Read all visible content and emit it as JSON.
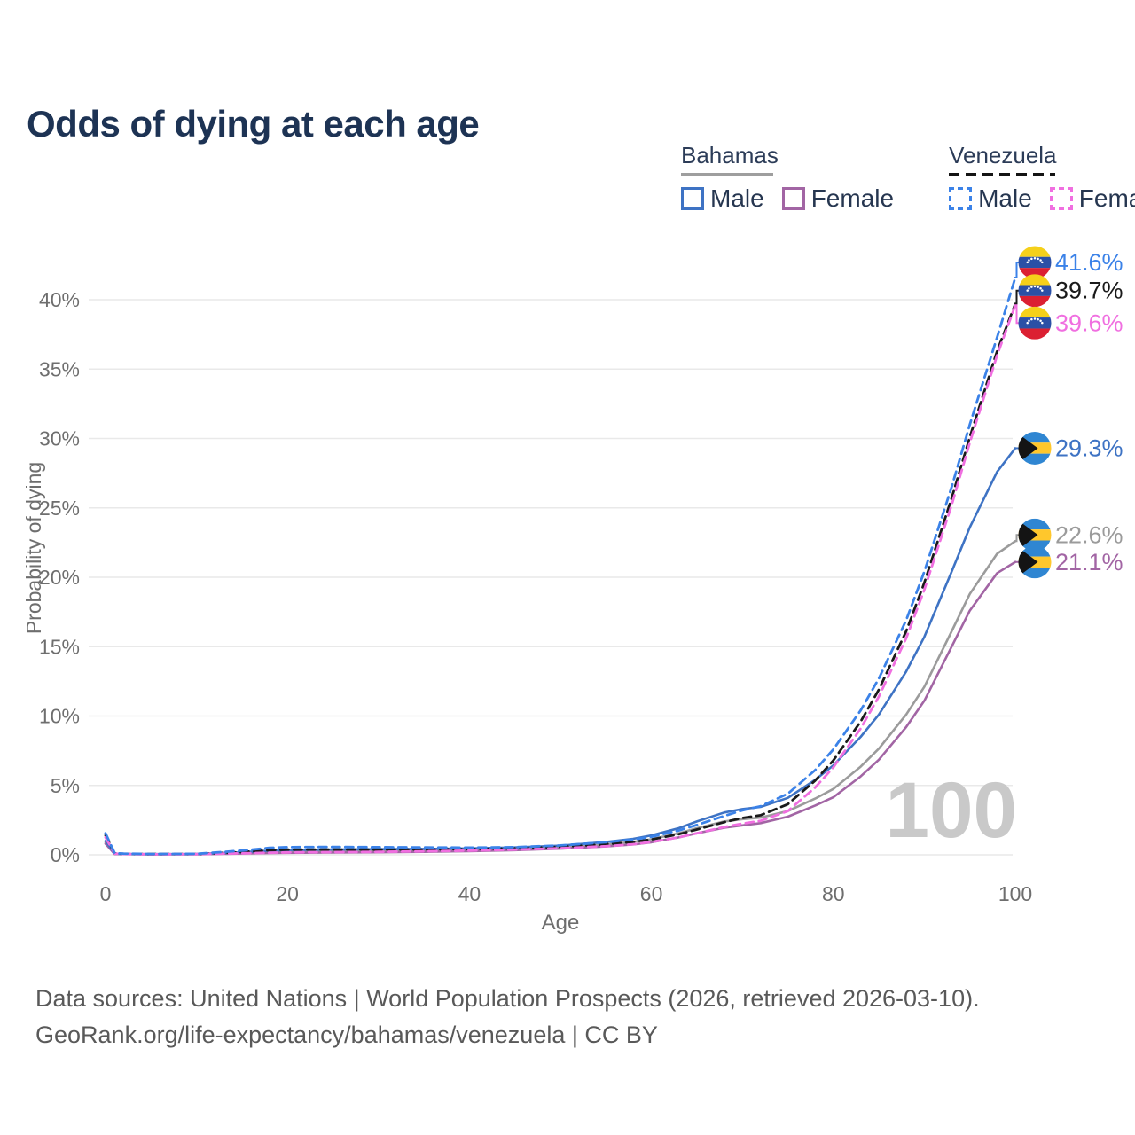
{
  "title": "Odds of dying at each age",
  "legend": {
    "groups": [
      {
        "name": "Bahamas",
        "line_style": "solid",
        "underline_color": "#9e9e9e",
        "items": [
          {
            "label": "Male",
            "color": "#3e73c4"
          },
          {
            "label": "Female",
            "color": "#a265a4"
          }
        ]
      },
      {
        "name": "Venezuela",
        "line_style": "dashed",
        "underline_color": "#141414",
        "items": [
          {
            "label": "Male",
            "color": "#3b82e8"
          },
          {
            "label": "Female",
            "color": "#f06fe0"
          }
        ]
      }
    ]
  },
  "chart_data": {
    "type": "line",
    "title": "Odds of dying at each age",
    "xlabel": "Age",
    "ylabel": "Probability of dying",
    "xlim": [
      0,
      100
    ],
    "ylim": [
      0,
      43
    ],
    "x_ticks": [
      0,
      20,
      40,
      60,
      80,
      100
    ],
    "y_ticks": [
      "0%",
      "5%",
      "10%",
      "15%",
      "20%",
      "25%",
      "30%",
      "35%",
      "40%"
    ],
    "grid": true,
    "legend_position": "top-right",
    "watermark": "100",
    "x": [
      0,
      1,
      2,
      5,
      10,
      15,
      18,
      20,
      25,
      30,
      35,
      40,
      45,
      50,
      55,
      58,
      60,
      63,
      65,
      68,
      70,
      72,
      75,
      78,
      80,
      83,
      85,
      88,
      90,
      93,
      95,
      98,
      100
    ],
    "series": [
      {
        "name": "Venezuela Male",
        "country": "Venezuela",
        "sex": "Male",
        "dash": true,
        "color": "#3b82e8",
        "end_label": "41.6%",
        "values": [
          1.55,
          0.12,
          0.08,
          0.06,
          0.07,
          0.3,
          0.5,
          0.55,
          0.57,
          0.55,
          0.53,
          0.52,
          0.55,
          0.68,
          0.9,
          1.1,
          1.3,
          1.75,
          2.15,
          2.8,
          3.2,
          3.5,
          4.4,
          6.1,
          7.6,
          10.4,
          12.7,
          16.9,
          20.4,
          26.5,
          31.0,
          37.3,
          41.6
        ]
      },
      {
        "name": "Venezuela Both sexes",
        "country": "Venezuela",
        "sex": "Both",
        "dash": true,
        "color": "#1a1a1a",
        "end_label": "39.7%",
        "values": [
          1.4,
          0.1,
          0.07,
          0.05,
          0.06,
          0.2,
          0.33,
          0.37,
          0.38,
          0.37,
          0.38,
          0.41,
          0.46,
          0.57,
          0.76,
          0.93,
          1.1,
          1.48,
          1.82,
          2.35,
          2.65,
          2.85,
          3.65,
          5.35,
          6.8,
          9.6,
          11.9,
          16.1,
          19.6,
          25.7,
          30.1,
          36.3,
          39.7
        ]
      },
      {
        "name": "Venezuela Female",
        "country": "Venezuela",
        "sex": "Female",
        "dash": true,
        "color": "#f06fe0",
        "end_label": "39.6%",
        "values": [
          1.25,
          0.09,
          0.06,
          0.04,
          0.05,
          0.11,
          0.15,
          0.17,
          0.19,
          0.21,
          0.25,
          0.3,
          0.37,
          0.47,
          0.62,
          0.76,
          0.92,
          1.25,
          1.55,
          2.0,
          2.25,
          2.45,
          3.15,
          4.85,
          6.3,
          9.1,
          11.4,
          15.6,
          19.1,
          25.2,
          29.7,
          36.0,
          39.6
        ]
      },
      {
        "name": "Bahamas Male",
        "country": "Bahamas",
        "sex": "Male",
        "dash": false,
        "color": "#3e73c4",
        "end_label": "29.3%",
        "values": [
          1.0,
          0.08,
          0.06,
          0.05,
          0.06,
          0.18,
          0.3,
          0.34,
          0.38,
          0.4,
          0.42,
          0.46,
          0.53,
          0.66,
          0.92,
          1.15,
          1.4,
          1.92,
          2.4,
          3.05,
          3.3,
          3.45,
          4.1,
          5.4,
          6.45,
          8.5,
          10.1,
          13.2,
          15.7,
          20.4,
          23.6,
          27.6,
          29.3
        ]
      },
      {
        "name": "Bahamas Both sexes",
        "country": "Bahamas",
        "sex": "Both",
        "dash": false,
        "color": "#9b9b9b",
        "end_label": "22.6%",
        "values": [
          0.9,
          0.07,
          0.05,
          0.04,
          0.05,
          0.13,
          0.2,
          0.24,
          0.27,
          0.29,
          0.31,
          0.36,
          0.43,
          0.54,
          0.74,
          0.93,
          1.12,
          1.55,
          1.92,
          2.4,
          2.57,
          2.68,
          3.15,
          4.05,
          4.75,
          6.35,
          7.65,
          10.1,
          12.1,
          16.1,
          18.8,
          21.7,
          22.6
        ]
      },
      {
        "name": "Bahamas Female",
        "country": "Bahamas",
        "sex": "Female",
        "dash": false,
        "color": "#a265a4",
        "end_label": "21.1%",
        "values": [
          0.8,
          0.06,
          0.05,
          0.04,
          0.04,
          0.09,
          0.12,
          0.14,
          0.16,
          0.18,
          0.21,
          0.26,
          0.33,
          0.44,
          0.6,
          0.75,
          0.9,
          1.25,
          1.55,
          1.95,
          2.12,
          2.28,
          2.75,
          3.55,
          4.15,
          5.65,
          6.85,
          9.2,
          11.1,
          15.0,
          17.6,
          20.3,
          21.1
        ]
      }
    ],
    "flag_colors": {
      "venezuela": {
        "yellow": "#F5D01A",
        "blue": "#2B50A6",
        "red": "#DB2032",
        "stars": "#ffffff"
      },
      "bahamas": {
        "blue": "#2F86D2",
        "yellow": "#FFC72C",
        "black": "#141414"
      }
    }
  },
  "footer": {
    "line1": "Data sources: United Nations | World Population Prospects (2026, retrieved 2026-03-10).",
    "line2": "GeoRank.org/life-expectancy/bahamas/venezuela | CC BY"
  }
}
